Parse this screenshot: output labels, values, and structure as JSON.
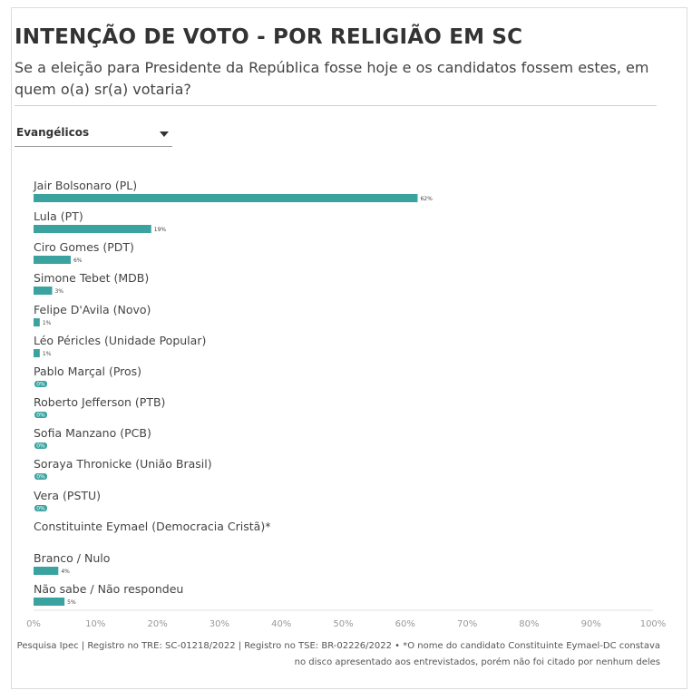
{
  "header": {
    "title": "INTENÇÃO DE VOTO - POR RELIGIÃO EM SC",
    "subtitle": "Se a eleição para Presidente da República fosse hoje e os candidatos fossem estes, em quem o(a) sr(a) votaria?"
  },
  "filter": {
    "selected": "Evangélicos"
  },
  "chart_data": {
    "type": "bar",
    "orientation": "horizontal",
    "categories": [
      "Jair Bolsonaro (PL)",
      "Lula (PT)",
      "Ciro Gomes (PDT)",
      "Simone Tebet (MDB)",
      "Felipe D'Avila (Novo)",
      "Léo Péricles (Unidade Popular)",
      "Pablo Marçal (Pros)",
      "Roberto Jefferson (PTB)",
      "Sofia Manzano (PCB)",
      "Soraya Thronicke (União Brasil)",
      "Vera (PSTU)",
      "Constituinte Eymael (Democracia Cristã)*",
      "Branco / Nulo",
      "Não sabe / Não respondeu"
    ],
    "values": [
      62,
      19,
      6,
      3,
      1,
      1,
      0,
      0,
      0,
      0,
      0,
      null,
      4,
      5
    ],
    "value_labels": [
      "62%",
      "19%",
      "6%",
      "3%",
      "1%",
      "1%",
      "0%",
      "0%",
      "0%",
      "0%",
      "0%",
      "",
      "4%",
      "5%"
    ],
    "xlim": [
      0,
      100
    ],
    "x_ticks": [
      "0%",
      "10%",
      "20%",
      "30%",
      "40%",
      "50%",
      "60%",
      "70%",
      "80%",
      "90%",
      "100%"
    ],
    "bar_color": "#3aa3a0",
    "grid": false
  },
  "footnote": "Pesquisa Ipec | Registro no TRE: SC-01218/2022 | Registro no TSE: BR-02226/2022 • *O nome do candidato Constituinte Eymael-DC constava no disco apresentado aos entrevistados, porém não foi citado por nenhum deles"
}
